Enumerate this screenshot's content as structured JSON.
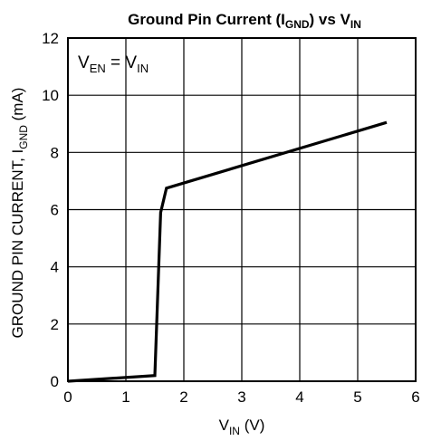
{
  "chart_data": {
    "type": "line",
    "title": {
      "main": "Ground Pin Current (I",
      "sub": "GND",
      "mid": ") vs V",
      "sub2": "IN"
    },
    "xlabel": {
      "main": "V",
      "sub": "IN",
      "rest": " (V)"
    },
    "ylabel": {
      "main": "GROUND PIN CURRENT, I",
      "sub": "GND",
      "rest": " (mA)"
    },
    "annotation": {
      "a": "V",
      "a_sub": "EN",
      "eq": " = V",
      "b_sub": "IN"
    },
    "xlim": [
      0,
      6
    ],
    "ylim": [
      0,
      12
    ],
    "xticks": [
      "0",
      "1",
      "2",
      "3",
      "4",
      "5",
      "6"
    ],
    "yticks": [
      "0",
      "2",
      "4",
      "6",
      "8",
      "10",
      "12"
    ],
    "grid": true,
    "series": [
      {
        "x": [
          0,
          1.5,
          1.6,
          1.7,
          5.5
        ],
        "y": [
          0,
          0.2,
          5.9,
          6.75,
          9.05
        ]
      }
    ]
  }
}
